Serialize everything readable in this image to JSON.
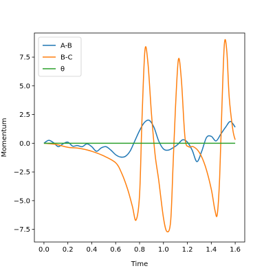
{
  "chart_data": {
    "type": "line",
    "title": "",
    "xlabel": "Time",
    "ylabel": "Momentum",
    "xlim": [
      -0.08,
      1.68
    ],
    "ylim": [
      -8.6,
      9.6
    ],
    "xticks": [
      0.0,
      0.2,
      0.4,
      0.6,
      0.8,
      1.0,
      1.2,
      1.4,
      1.6
    ],
    "xtick_labels": [
      "0.0",
      "0.2",
      "0.4",
      "0.6",
      "0.8",
      "1.0",
      "1.2",
      "1.4",
      "1.6"
    ],
    "yticks": [
      -7.5,
      -5.0,
      -2.5,
      0.0,
      2.5,
      5.0,
      7.5
    ],
    "ytick_labels": [
      "−7.5",
      "−5.0",
      "−2.5",
      "0.0",
      "2.5",
      "5.0",
      "7.5"
    ],
    "grid": false,
    "legend_position": "upper-left",
    "series": [
      {
        "name": "A-B",
        "color": "#1f77b4",
        "x": [
          0.0,
          0.04,
          0.08,
          0.12,
          0.16,
          0.2,
          0.24,
          0.28,
          0.32,
          0.36,
          0.4,
          0.44,
          0.48,
          0.52,
          0.56,
          0.6,
          0.64,
          0.68,
          0.72,
          0.76,
          0.8,
          0.84,
          0.88,
          0.92,
          0.96,
          1.0,
          1.04,
          1.08,
          1.12,
          1.16,
          1.2,
          1.24,
          1.28,
          1.32,
          1.36,
          1.4,
          1.44,
          1.48,
          1.52,
          1.56,
          1.6
        ],
        "y": [
          0.0,
          0.25,
          0.05,
          -0.3,
          -0.05,
          0.1,
          -0.25,
          -0.2,
          -0.3,
          -0.05,
          -0.3,
          -0.7,
          -0.4,
          -0.3,
          -0.6,
          -1.0,
          -1.2,
          -1.15,
          -0.7,
          0.2,
          1.1,
          1.8,
          2.0,
          1.4,
          0.2,
          -0.5,
          -0.6,
          -0.4,
          -0.1,
          0.3,
          0.1,
          -0.6,
          -1.6,
          -0.7,
          0.5,
          0.6,
          0.2,
          0.8,
          1.4,
          1.9,
          1.4
        ]
      },
      {
        "name": "B-C",
        "color": "#ff7f0e",
        "x": [
          0.0,
          0.1,
          0.2,
          0.3,
          0.4,
          0.5,
          0.6,
          0.65,
          0.7,
          0.74,
          0.77,
          0.8,
          0.82,
          0.845,
          0.87,
          0.9,
          0.93,
          0.96,
          1.0,
          1.03,
          1.06,
          1.08,
          1.1,
          1.125,
          1.15,
          1.18,
          1.21,
          1.25,
          1.3,
          1.35,
          1.4,
          1.43,
          1.45,
          1.47,
          1.49,
          1.51,
          1.53,
          1.55,
          1.58,
          1.6
        ],
        "y": [
          0.0,
          -0.1,
          -0.35,
          -0.45,
          -0.7,
          -1.1,
          -1.7,
          -2.6,
          -4.0,
          -5.5,
          -6.7,
          -4.5,
          2.0,
          8.1,
          7.0,
          2.5,
          -1.0,
          -3.2,
          -6.5,
          -7.7,
          -6.8,
          -2.0,
          3.0,
          7.3,
          5.5,
          0.5,
          -0.3,
          -0.3,
          -0.8,
          -2.0,
          -4.0,
          -5.8,
          -6.2,
          -3.0,
          3.5,
          8.7,
          8.0,
          4.0,
          1.2,
          0.3
        ]
      },
      {
        "name": "θ",
        "color": "#2ca02c",
        "x": [
          0.0,
          1.6
        ],
        "y": [
          0.0,
          0.0
        ]
      }
    ]
  }
}
